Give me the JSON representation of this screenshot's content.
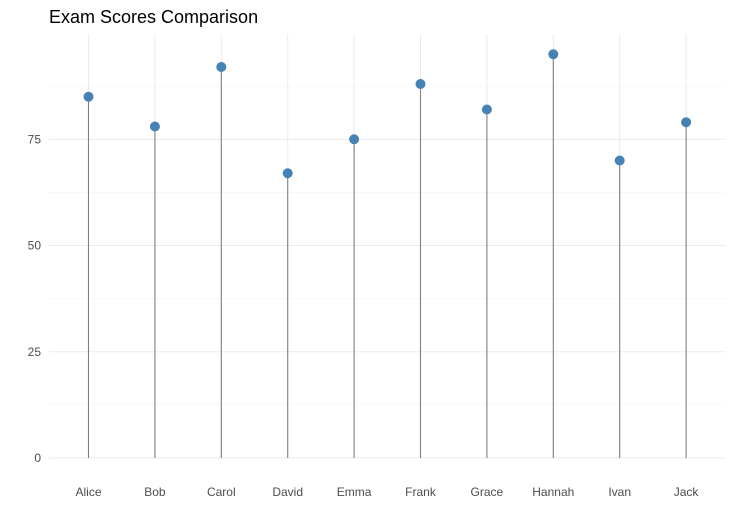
{
  "chart_data": {
    "type": "lollipop",
    "title": "Exam Scores Comparison",
    "xlabel": "",
    "ylabel": "",
    "categories": [
      "Alice",
      "Bob",
      "Carol",
      "David",
      "Emma",
      "Frank",
      "Grace",
      "Hannah",
      "Ivan",
      "Jack"
    ],
    "values": [
      85,
      78,
      92,
      67,
      75,
      88,
      82,
      95,
      70,
      79
    ],
    "ylim": [
      0,
      100
    ],
    "yticks": [
      0,
      25,
      50,
      75
    ],
    "grid": true,
    "legend": "none",
    "colors": {
      "point": "#4682b4",
      "stem": "#808080"
    }
  }
}
